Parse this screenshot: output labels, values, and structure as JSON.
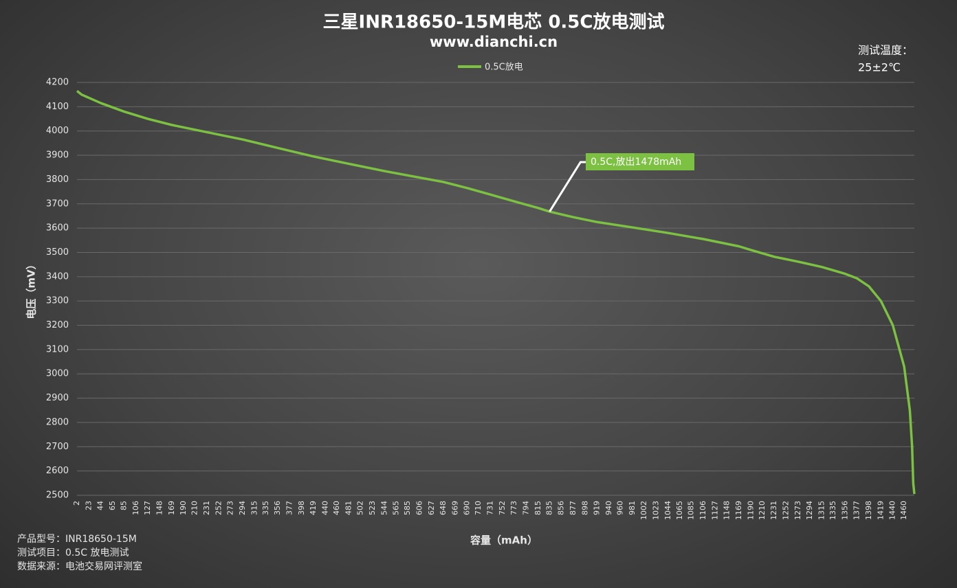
{
  "chart_data": {
    "type": "line",
    "title": "三星INR18650-15M电芯 0.5C放电测试",
    "subtitle": "www.dianchi.cn",
    "temperature_label": "测试温度：",
    "temperature_value": "25±2℃",
    "x_label": "容量（mAh）",
    "y_label": "电压（mV）",
    "annotation": "0.5C,放出1478mAh",
    "notes": [
      "产品型号：INR18650-15M",
      "测试项目：0.5C 放电测试",
      "数据来源：电池交易网评测室"
    ],
    "xlim": [
      2,
      1478
    ],
    "xticks": [
      2,
      23,
      44,
      65,
      85,
      106,
      127,
      148,
      169,
      190,
      210,
      231,
      252,
      273,
      294,
      315,
      335,
      356,
      377,
      398,
      419,
      440,
      460,
      481,
      502,
      523,
      544,
      565,
      585,
      606,
      627,
      648,
      669,
      690,
      710,
      731,
      752,
      773,
      794,
      815,
      835,
      856,
      877,
      898,
      919,
      940,
      960,
      981,
      1002,
      1023,
      1044,
      1065,
      1085,
      1106,
      1127,
      1148,
      1169,
      1190,
      1210,
      1231,
      1252,
      1273,
      1294,
      1315,
      1335,
      1356,
      1377,
      1398,
      1419,
      1440,
      1460
    ],
    "ylim": [
      2500,
      4200
    ],
    "yticks": [
      2500,
      2600,
      2700,
      2800,
      2900,
      3000,
      3100,
      3200,
      3300,
      3400,
      3500,
      3600,
      3700,
      3800,
      3900,
      4000,
      4100,
      4200
    ],
    "grid": true,
    "legend": "top",
    "series": [
      {
        "name": "0.5C放电",
        "color": "#7cc142",
        "x": [
          2,
          10,
          44,
          85,
          127,
          169,
          231,
          294,
          356,
          419,
          481,
          544,
          606,
          648,
          690,
          731,
          773,
          815,
          835,
          877,
          919,
          981,
          1044,
          1106,
          1169,
          1190,
          1231,
          1273,
          1315,
          1356,
          1377,
          1398,
          1419,
          1440,
          1460,
          1470,
          1474,
          1476,
          1478
        ],
        "values": [
          4165,
          4150,
          4115,
          4080,
          4050,
          4025,
          3995,
          3965,
          3930,
          3895,
          3865,
          3835,
          3808,
          3790,
          3765,
          3738,
          3710,
          3683,
          3668,
          3645,
          3625,
          3603,
          3580,
          3555,
          3525,
          3510,
          3482,
          3462,
          3440,
          3412,
          3393,
          3360,
          3300,
          3200,
          3030,
          2850,
          2700,
          2550,
          2505
        ]
      }
    ]
  }
}
